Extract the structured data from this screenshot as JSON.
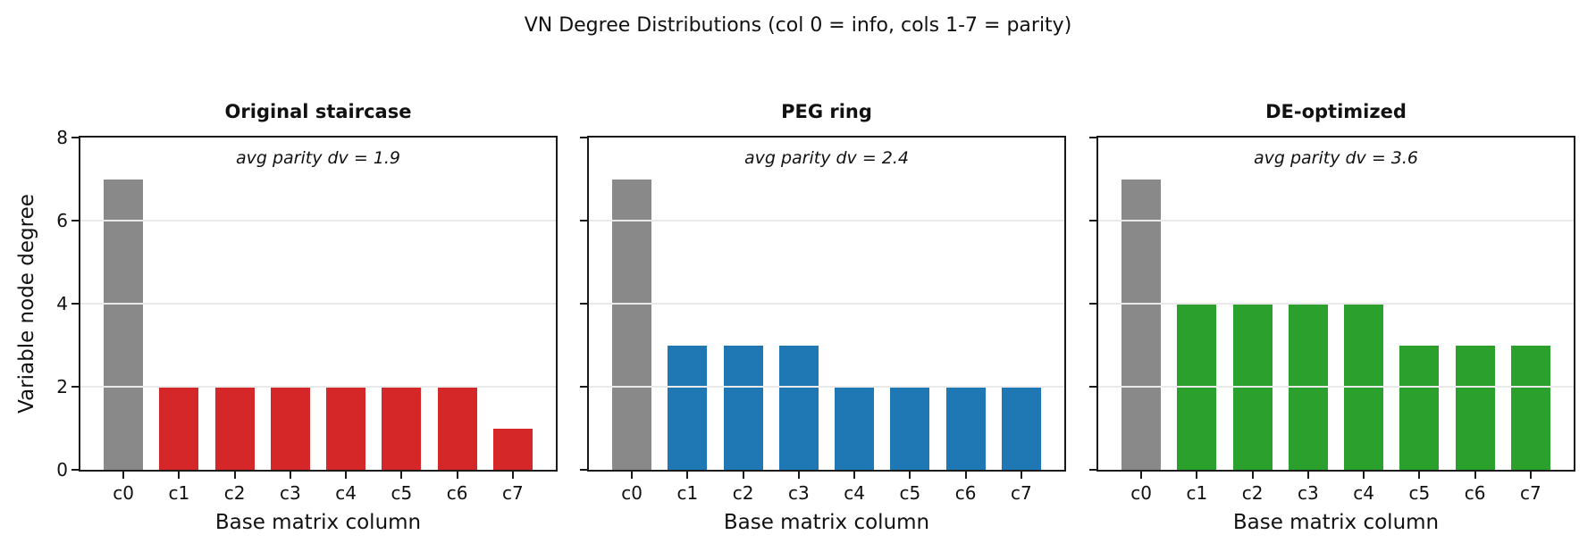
{
  "chart_data": {
    "type": "bar",
    "suptitle": "VN Degree Distributions (col 0 = info, cols 1-7 = parity)",
    "xlabel": "Base matrix column",
    "ylabel": "Variable node degree",
    "ylim": [
      0,
      8
    ],
    "yticks": [
      0,
      2,
      4,
      6,
      8
    ],
    "gridlines_y": [
      2,
      4,
      6
    ],
    "grid": "horizontal",
    "legend": "none",
    "categories": [
      "c0",
      "c1",
      "c2",
      "c3",
      "c4",
      "c5",
      "c6",
      "c7"
    ],
    "info_bar_color": "#898989",
    "spine_color": "#1a1a1a",
    "grid_color": "#e9e9e9",
    "subplots": [
      {
        "title": "Original staircase",
        "annotation": "avg parity dv = 1.9",
        "values": [
          7,
          2,
          2,
          2,
          2,
          2,
          2,
          1
        ],
        "parity_color": "#d62728"
      },
      {
        "title": "PEG ring",
        "annotation": "avg parity dv = 2.4",
        "values": [
          7,
          3,
          3,
          3,
          2,
          2,
          2,
          2
        ],
        "parity_color": "#1f77b4"
      },
      {
        "title": "DE-optimized",
        "annotation": "avg parity dv = 3.6",
        "values": [
          7,
          4,
          4,
          4,
          4,
          3,
          3,
          3
        ],
        "parity_color": "#2ca02c"
      }
    ]
  }
}
